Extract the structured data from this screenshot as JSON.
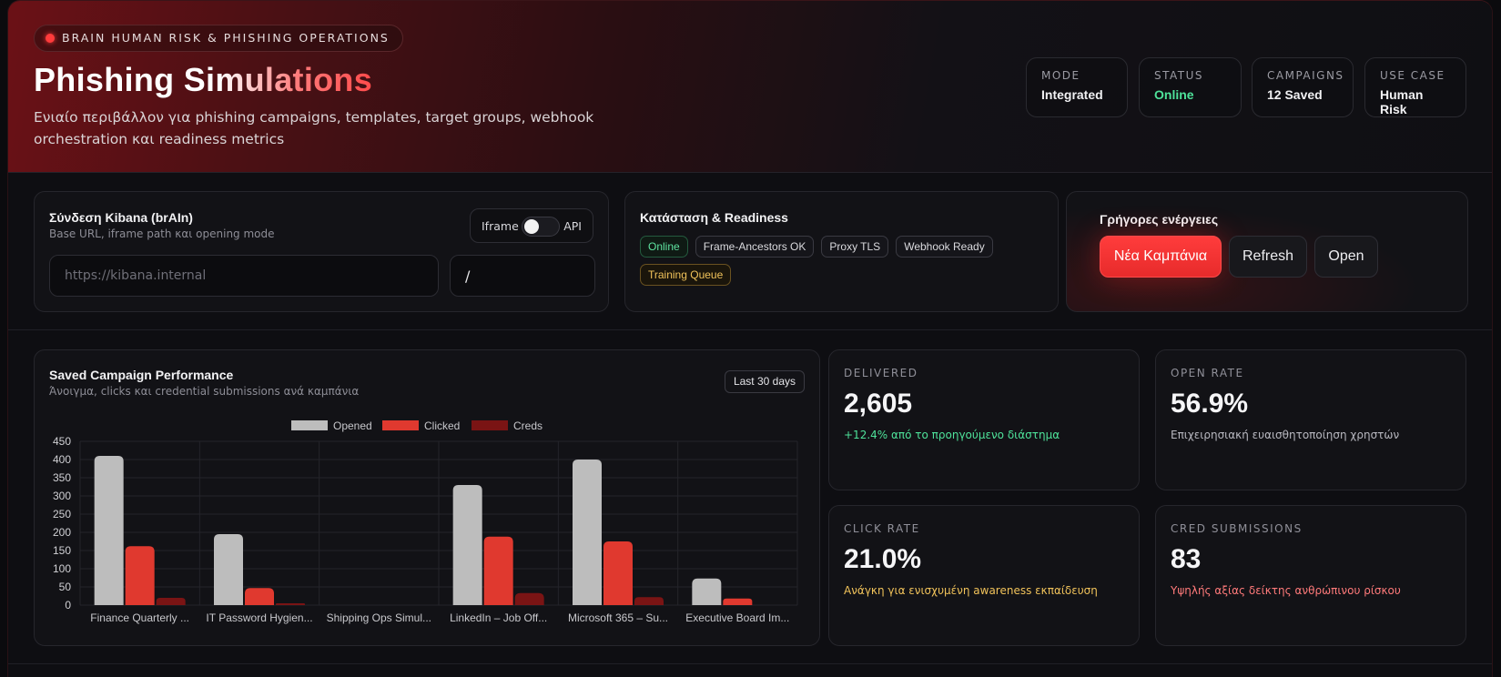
{
  "header": {
    "eyebrow": "BRAIN HUMAN RISK & PHISHING OPERATIONS",
    "title": "Phishing Simulations",
    "subtitle": "Ενιαίο περιβάλλον για phishing campaigns, templates, target groups, webhook orchestration και readiness metrics",
    "stats": [
      {
        "label": "MODE",
        "value": "Integrated"
      },
      {
        "label": "STATUS",
        "value": "Online",
        "color": "#4ee29a"
      },
      {
        "label": "CAMPAIGNS",
        "value": "12 Saved"
      },
      {
        "label": "USE CASE",
        "value": "Human Risk"
      }
    ]
  },
  "kibana": {
    "title": "Σύνδεση Kibana (brAIn)",
    "subtitle": "Base URL, iframe path και opening mode",
    "toggle_left": "Iframe",
    "toggle_right": "API",
    "url_placeholder": "https://kibana.internal",
    "path_value": "/"
  },
  "readiness": {
    "title": "Κατάσταση & Readiness",
    "chips": [
      {
        "label": "Online",
        "style": "green"
      },
      {
        "label": "Frame-Ancestors OK",
        "style": "default"
      },
      {
        "label": "Proxy TLS",
        "style": "default"
      },
      {
        "label": "Webhook Ready",
        "style": "default"
      },
      {
        "label": "Training Queue",
        "style": "yellow"
      }
    ]
  },
  "actions": {
    "title": "Γρήγορες ενέργειες",
    "new_campaign": "Νέα Καμπάνια",
    "refresh": "Refresh",
    "open": "Open"
  },
  "chart_panel": {
    "title": "Saved Campaign Performance",
    "subtitle": "Άνοιγμα, clicks και credential submissions ανά καμπάνια",
    "range": "Last 30 days"
  },
  "chart_data": {
    "type": "bar",
    "categories": [
      "Finance Quarterly ...",
      "IT Password Hygien...",
      "Shipping Ops Simul...",
      "LinkedIn – Job Off...",
      "Microsoft 365 – Su...",
      "Executive Board Im..."
    ],
    "series": [
      {
        "name": "Opened",
        "color": "#bdbdbd",
        "values": [
          410,
          195,
          0,
          330,
          400,
          73
        ]
      },
      {
        "name": "Clicked",
        "color": "#e0392f",
        "values": [
          162,
          47,
          0,
          188,
          175,
          18
        ]
      },
      {
        "name": "Creds",
        "color": "#7a1414",
        "values": [
          20,
          5,
          0,
          33,
          22,
          0
        ]
      }
    ],
    "yticks": [
      0,
      50,
      100,
      150,
      200,
      250,
      300,
      350,
      400,
      450
    ],
    "ylim": [
      0,
      450
    ],
    "legend": "top-center",
    "grid": true
  },
  "metrics": [
    {
      "label": "DELIVERED",
      "value": "2,605",
      "note": "+12.4% από το προηγούμενο διάστημα",
      "note_color": "#4ee29a"
    },
    {
      "label": "OPEN RATE",
      "value": "56.9%",
      "note": "Επιχειρησιακή ευαισθητοποίηση χρηστών",
      "note_color": "#b8b8c0"
    },
    {
      "label": "CLICK RATE",
      "value": "21.0%",
      "note": "Ανάγκη για ενισχυμένη awareness εκπαίδευση",
      "note_color": "#f0c25a"
    },
    {
      "label": "CRED SUBMISSIONS",
      "value": "83",
      "note": "Υψηλής αξίας δείκτης ανθρώπινου ρίσκου",
      "note_color": "#ff7a7a"
    }
  ]
}
